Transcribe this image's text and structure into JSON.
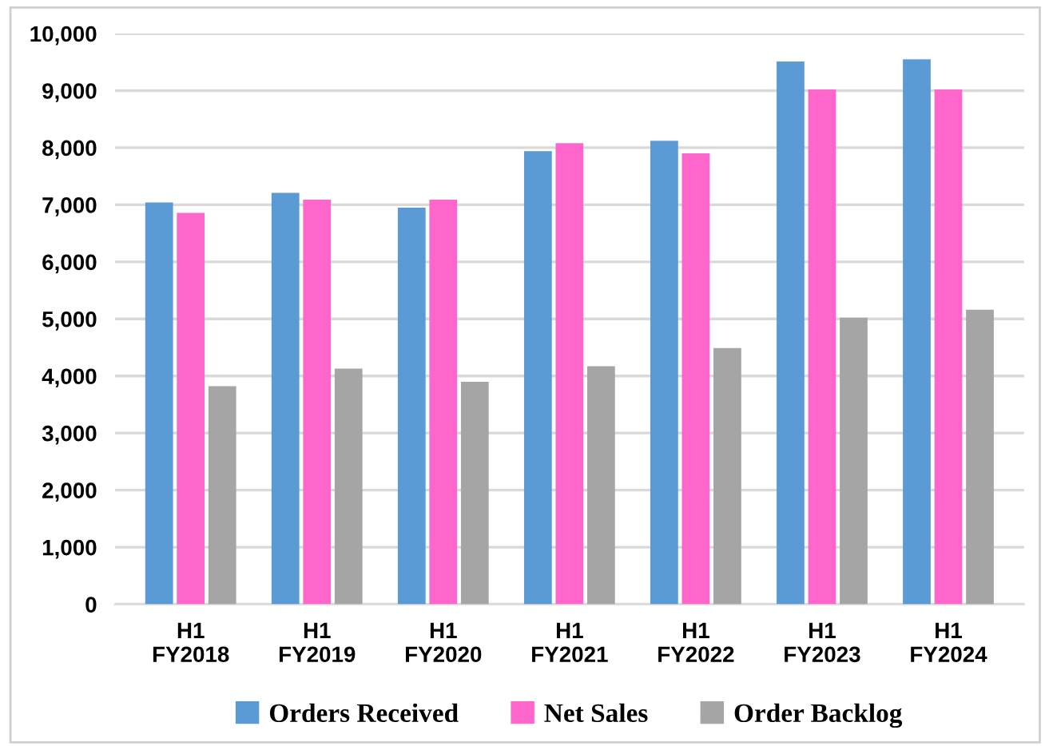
{
  "chart_data": {
    "type": "bar",
    "categories": [
      "H1\nFY2018",
      "H1\nFY2019",
      "H1\nFY2020",
      "H1\nFY2021",
      "H1\nFY2022",
      "H1\nFY2023",
      "H1\nFY2024"
    ],
    "series": [
      {
        "name": "Orders Received",
        "color": "#5b9bd5",
        "values": [
          7040,
          7210,
          6950,
          7940,
          8120,
          9510,
          9550
        ]
      },
      {
        "name": "Net Sales",
        "color": "#ff66cc",
        "values": [
          6860,
          7090,
          7090,
          8080,
          7900,
          9020,
          9020
        ]
      },
      {
        "name": "Order Backlog",
        "color": "#a5a5a5",
        "values": [
          3820,
          4130,
          3900,
          4170,
          4490,
          5020,
          5160
        ]
      }
    ],
    "ylim": [
      0,
      10000
    ],
    "yticks": [
      {
        "value": 0,
        "label": "0"
      },
      {
        "value": 1000,
        "label": "1,000"
      },
      {
        "value": 2000,
        "label": "2,000"
      },
      {
        "value": 3000,
        "label": "3,000"
      },
      {
        "value": 4000,
        "label": "4,000"
      },
      {
        "value": 5000,
        "label": "5,000"
      },
      {
        "value": 6000,
        "label": "6,000"
      },
      {
        "value": 7000,
        "label": "7,000"
      },
      {
        "value": 8000,
        "label": "8,000"
      },
      {
        "value": 9000,
        "label": "9,000"
      },
      {
        "value": 10000,
        "label": "10,000"
      }
    ],
    "grid": "y",
    "legend": "bottom"
  }
}
